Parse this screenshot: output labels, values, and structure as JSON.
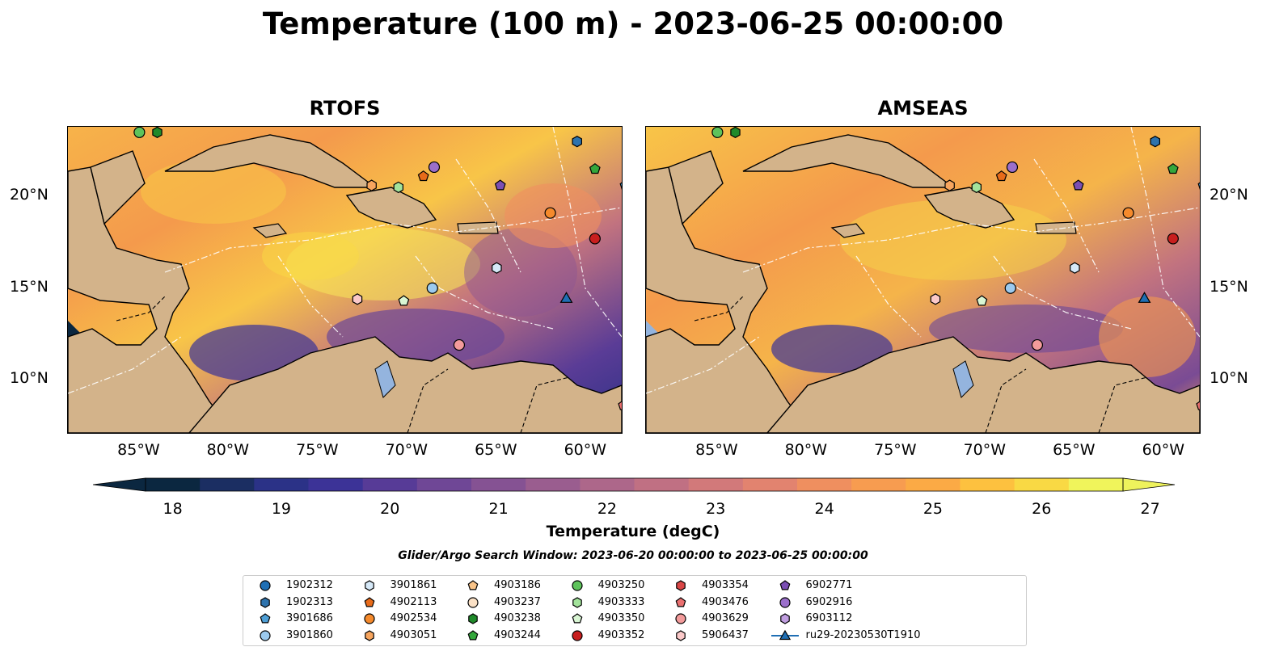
{
  "title": "Temperature (100 m) - 2023-06-25 00:00:00",
  "panels": [
    {
      "title": "RTOFS",
      "icon": "ocean-temperature-map"
    },
    {
      "title": "AMSEAS",
      "icon": "ocean-temperature-map"
    }
  ],
  "axes": {
    "x_ticks": [
      "85°W",
      "80°W",
      "75°W",
      "70°W",
      "65°W",
      "60°W"
    ],
    "y_ticks": [
      "20°N",
      "15°N",
      "10°N"
    ]
  },
  "colorbar": {
    "label": "Temperature (degC)",
    "ticks": [
      "18",
      "19",
      "20",
      "21",
      "22",
      "23",
      "24",
      "25",
      "26",
      "27"
    ],
    "colors": [
      "#0b2740",
      "#1b2e62",
      "#2b3287",
      "#3c3397",
      "#573b97",
      "#6f4796",
      "#855293",
      "#9a5d8f",
      "#ad678a",
      "#c07083",
      "#d2797a",
      "#e2836f",
      "#ef8f5f",
      "#f79c50",
      "#fbaa45",
      "#fdc13f",
      "#f9d944",
      "#f0f45b"
    ]
  },
  "search_window": "Glider/Argo Search Window: 2023-06-20 00:00:00 to 2023-06-25 00:00:00",
  "legend": {
    "items": [
      {
        "label": "1902312",
        "marker": "circle",
        "color": "#1f6fb4"
      },
      {
        "label": "1902313",
        "marker": "hexagon",
        "color": "#2e73ad"
      },
      {
        "label": "3901686",
        "marker": "pentagon",
        "color": "#4e9fd6"
      },
      {
        "label": "3901860",
        "marker": "circle",
        "color": "#9ccaee"
      },
      {
        "label": "3901861",
        "marker": "hexagon",
        "color": "#d6e9f8"
      },
      {
        "label": "4902113",
        "marker": "pentagon",
        "color": "#e86b1a"
      },
      {
        "label": "4902534",
        "marker": "circle",
        "color": "#f58a2c"
      },
      {
        "label": "4903051",
        "marker": "hexagon",
        "color": "#f7a55e"
      },
      {
        "label": "4903186",
        "marker": "pentagon",
        "color": "#f9c489"
      },
      {
        "label": "4903237",
        "marker": "circle",
        "color": "#fbe1c6"
      },
      {
        "label": "4903238",
        "marker": "hexagon",
        "color": "#1f8a2a"
      },
      {
        "label": "4903244",
        "marker": "pentagon",
        "color": "#34a73c"
      },
      {
        "label": "4903250",
        "marker": "circle",
        "color": "#5ec35b"
      },
      {
        "label": "4903333",
        "marker": "hexagon",
        "color": "#a3e39b"
      },
      {
        "label": "4903350",
        "marker": "pentagon",
        "color": "#d9f6d4"
      },
      {
        "label": "4903352",
        "marker": "circle",
        "color": "#c81e1e"
      },
      {
        "label": "4903354",
        "marker": "hexagon",
        "color": "#d94646"
      },
      {
        "label": "4903476",
        "marker": "pentagon",
        "color": "#ea7070"
      },
      {
        "label": "4903629",
        "marker": "circle",
        "color": "#f39b9b"
      },
      {
        "label": "5906437",
        "marker": "hexagon",
        "color": "#fbc9c9"
      },
      {
        "label": "6902771",
        "marker": "pentagon",
        "color": "#7b4fb3"
      },
      {
        "label": "6902916",
        "marker": "circle",
        "color": "#9b6fcb"
      },
      {
        "label": "6903112",
        "marker": "hexagon",
        "color": "#c09ee0"
      },
      {
        "label": "ru29-20230530T1910",
        "marker": "triangle-line",
        "color": "#1f6fb4"
      }
    ]
  },
  "map_markers": [
    {
      "marker": "circle",
      "color": "#5ec35b",
      "lon": -85.0,
      "lat": 23.5
    },
    {
      "marker": "hexagon",
      "color": "#1f8a2a",
      "lon": -84.0,
      "lat": 23.5
    },
    {
      "marker": "hexagon",
      "color": "#2e73ad",
      "lon": -60.5,
      "lat": 23.0
    },
    {
      "marker": "pentagon",
      "color": "#34a73c",
      "lon": -59.5,
      "lat": 21.5
    },
    {
      "marker": "pentagon",
      "color": "#4e9fd6",
      "lon": -57.8,
      "lat": 20.6
    },
    {
      "marker": "circle",
      "color": "#9b6fcb",
      "lon": -68.5,
      "lat": 21.6
    },
    {
      "marker": "pentagon",
      "color": "#e86b1a",
      "lon": -69.1,
      "lat": 21.1
    },
    {
      "marker": "pentagon",
      "color": "#7b4fb3",
      "lon": -64.8,
      "lat": 20.6
    },
    {
      "marker": "hexagon",
      "color": "#f7a55e",
      "lon": -72.0,
      "lat": 20.6
    },
    {
      "marker": "hexagon",
      "color": "#a3e39b",
      "lon": -70.5,
      "lat": 20.5
    },
    {
      "marker": "circle",
      "color": "#f58a2c",
      "lon": -62.0,
      "lat": 19.1
    },
    {
      "marker": "circle",
      "color": "#c81e1e",
      "lon": -59.5,
      "lat": 17.7
    },
    {
      "marker": "hexagon",
      "color": "#d6e9f8",
      "lon": -65.0,
      "lat": 16.1
    },
    {
      "marker": "circle",
      "color": "#9ccaee",
      "lon": -68.6,
      "lat": 15.0
    },
    {
      "marker": "hexagon",
      "color": "#fbc9c9",
      "lon": -72.8,
      "lat": 14.4
    },
    {
      "marker": "pentagon",
      "color": "#d9f6d4",
      "lon": -70.2,
      "lat": 14.3
    },
    {
      "marker": "triangle",
      "color": "#1f6fb4",
      "lon": -61.1,
      "lat": 14.4
    },
    {
      "marker": "circle",
      "color": "#f39b9b",
      "lon": -67.1,
      "lat": 11.9
    },
    {
      "marker": "pentagon",
      "color": "#ea7070",
      "lon": -57.9,
      "lat": 8.6
    }
  ]
}
